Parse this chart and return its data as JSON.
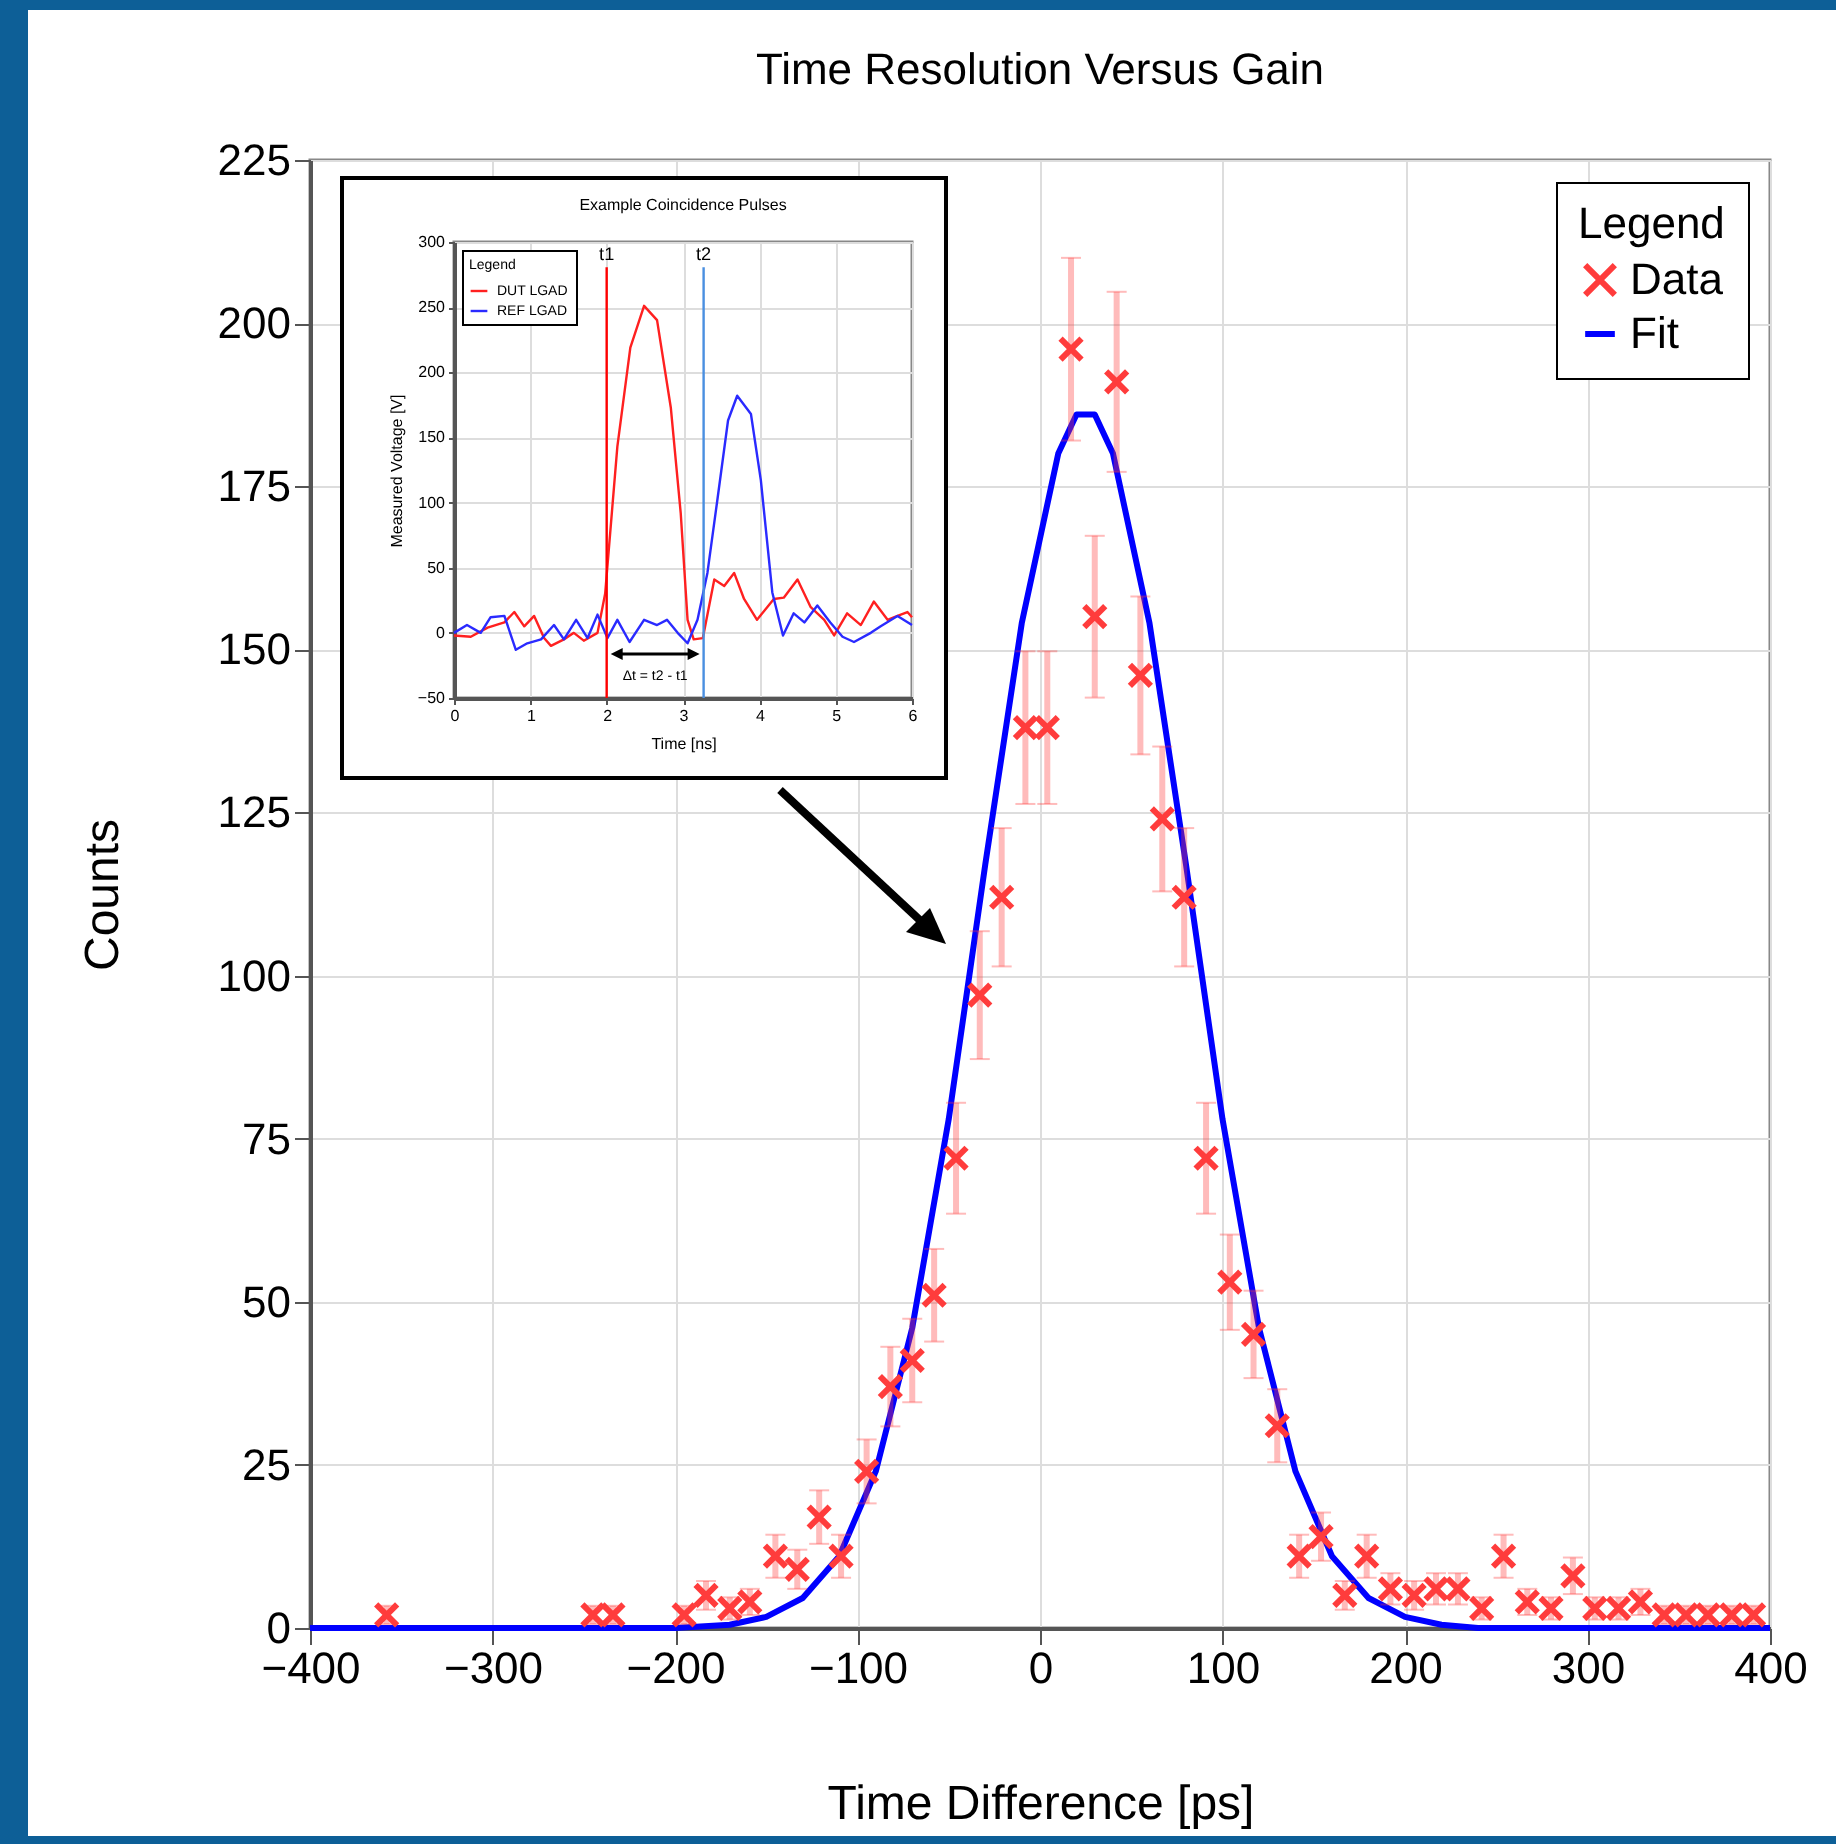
{
  "chart_data": [
    {
      "type": "scatter",
      "title": "Time Resolution Versus Gain",
      "xlabel": "Time Difference [ps]",
      "ylabel": "Counts",
      "legend_title": "Legend",
      "legend": "top right",
      "grid": true,
      "xlim": [
        -400,
        400
      ],
      "xticks": [
        -400,
        -300,
        -200,
        -100,
        0,
        100,
        200,
        300,
        400
      ],
      "ylim": [
        0,
        225
      ],
      "yticks": [
        0,
        25,
        50,
        75,
        100,
        125,
        150,
        175,
        200,
        225
      ],
      "series": [
        {
          "name": "Data",
          "type": "scatter",
          "marker": "cross",
          "color": "#ff3c3c",
          "x": [
            -358,
            -245,
            -234,
            -195,
            -183,
            -170,
            -159,
            -145,
            -133,
            -121,
            -109,
            -95,
            -82,
            -70,
            -58,
            -46,
            -33,
            -21,
            -8,
            4,
            17,
            30,
            42,
            55,
            67,
            79,
            91,
            104,
            117,
            130,
            142,
            154,
            167,
            179,
            192,
            205,
            217,
            229,
            242,
            254,
            267,
            280,
            292,
            304,
            317,
            329,
            342,
            354,
            366,
            379,
            391
          ],
          "values": [
            2,
            2,
            2,
            2,
            5,
            3,
            4,
            11,
            9,
            17,
            11,
            24,
            37,
            41,
            51,
            72,
            97,
            112,
            138,
            138,
            196,
            155,
            191,
            146,
            124,
            112,
            72,
            53,
            45,
            31,
            11,
            14,
            5,
            11,
            6,
            5,
            6,
            6,
            3,
            11,
            4,
            3,
            8,
            3,
            3,
            4,
            2,
            2,
            2,
            2,
            2
          ],
          "errors": [
            1.4,
            1.4,
            1.4,
            1.4,
            2.2,
            1.7,
            2,
            3.3,
            3,
            4.1,
            3.3,
            4.9,
            6.1,
            6.4,
            7.1,
            8.5,
            9.8,
            10.6,
            11.7,
            11.7,
            14,
            12.4,
            13.8,
            12.1,
            11.1,
            10.6,
            8.5,
            7.3,
            6.7,
            5.6,
            3.3,
            3.7,
            2.2,
            3.3,
            2.4,
            2.2,
            2.4,
            2.4,
            1.7,
            3.3,
            2,
            1.7,
            2.8,
            1.7,
            1.7,
            2,
            1.4,
            1.4,
            1.4,
            1.4,
            1.4
          ]
        },
        {
          "name": "Fit",
          "type": "line",
          "color": "#0000ff",
          "x": [
            -400,
            -200,
            -170,
            -150,
            -130,
            -110,
            -90,
            -70,
            -50,
            -30,
            -10,
            10,
            20,
            30,
            40,
            60,
            80,
            100,
            120,
            140,
            160,
            180,
            200,
            220,
            240,
            400
          ],
          "values": [
            0,
            0,
            0.5,
            1.7,
            4.6,
            11,
            24,
            46,
            78,
            117,
            154,
            180,
            186,
            186,
            180,
            154,
            117,
            78,
            46,
            24,
            11,
            4.6,
            1.7,
            0.5,
            0,
            0
          ]
        }
      ]
    },
    {
      "type": "line",
      "title": "Example Coincidence Pulses",
      "xlabel": "Time [ns]",
      "ylabel": "Measured Voltage [V]",
      "legend_title": "Legend",
      "legend": "top left",
      "grid": true,
      "xlim": [
        0,
        6
      ],
      "xticks": [
        0,
        1,
        2,
        3,
        4,
        5,
        6
      ],
      "ylim": [
        -50,
        300
      ],
      "yticks": [
        -50,
        0,
        50,
        100,
        150,
        200,
        250,
        300
      ],
      "series": [
        {
          "name": "DUT LGAD",
          "color": "#ff2020",
          "x": [
            0,
            0.22,
            0.44,
            0.66,
            0.79,
            0.92,
            1.05,
            1.18,
            1.27,
            1.44,
            1.57,
            1.7,
            1.88,
            1.98,
            2.14,
            2.31,
            2.49,
            2.66,
            2.84,
            2.97,
            3.06,
            3.14,
            3.26,
            3.41,
            3.54,
            3.67,
            3.8,
            3.97,
            4.19,
            4.32,
            4.5,
            4.67,
            4.85,
            4.98,
            5.15,
            5.33,
            5.5,
            5.68,
            5.81,
            5.94,
            6
          ],
          "values": [
            -2,
            -3,
            4,
            8,
            16,
            5,
            13,
            -4,
            -10,
            -5,
            0,
            -6,
            0,
            30,
            143,
            219,
            251,
            240,
            173,
            92,
            10,
            -5,
            -4,
            41,
            36,
            46,
            26,
            10,
            26,
            27,
            41,
            20,
            10,
            -2,
            15,
            6,
            24,
            10,
            13,
            16,
            12
          ]
        },
        {
          "name": "REF LGAD",
          "color": "#2a2aff",
          "x": [
            0,
            0.17,
            0.35,
            0.48,
            0.66,
            0.81,
            0.96,
            1.14,
            1.31,
            1.44,
            1.6,
            1.75,
            1.88,
            2.01,
            2.14,
            2.3,
            2.49,
            2.66,
            2.79,
            2.93,
            3.06,
            3.19,
            3.32,
            3.45,
            3.59,
            3.71,
            3.89,
            4.02,
            4.17,
            4.31,
            4.45,
            4.59,
            4.76,
            4.93,
            5.09,
            5.24,
            5.46,
            5.59,
            5.81,
            6
          ],
          "values": [
            0,
            6,
            0,
            12,
            13,
            -13,
            -8,
            -5,
            6,
            -5,
            10,
            -4,
            14,
            -4,
            10,
            -7,
            10,
            6,
            10,
            0,
            -8,
            10,
            46,
            102,
            163,
            182,
            168,
            117,
            31,
            -2,
            15,
            8,
            21,
            8,
            -3,
            -7,
            0,
            5,
            13,
            6
          ]
        }
      ],
      "ref_lines": [
        {
          "axis": "x",
          "value": 2,
          "label": "t1",
          "color": "#ff0000"
        },
        {
          "axis": "x",
          "value": 3.27,
          "label": "t2",
          "color": "#4a8fe0"
        }
      ],
      "annotations": [
        "Δt = t2 - t1"
      ]
    }
  ]
}
